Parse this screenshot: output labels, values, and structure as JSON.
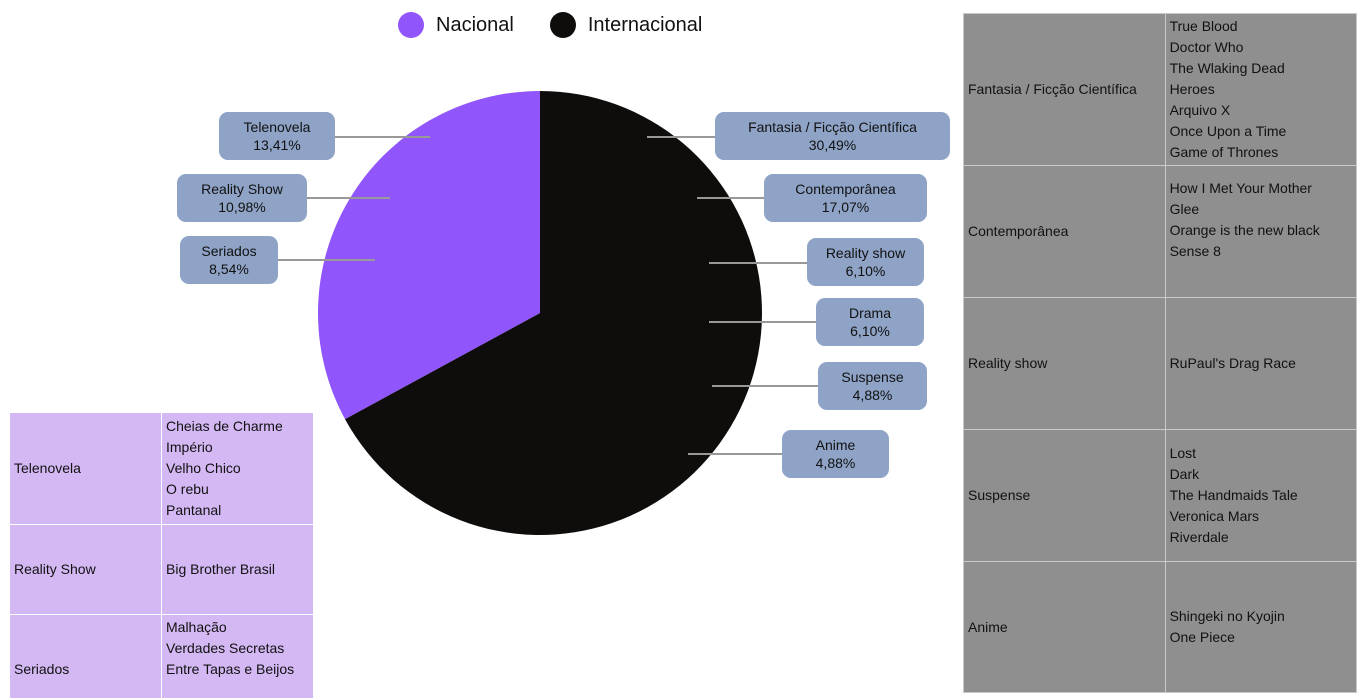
{
  "chart_data": {
    "type": "pie",
    "legend": [
      {
        "name": "Nacional",
        "color": "#9155fc"
      },
      {
        "name": "Internacional",
        "color": "#0f0d0c"
      }
    ],
    "slices": [
      {
        "name": "Nacional",
        "value": 32.93,
        "color": "#9155fc"
      },
      {
        "name": "Internacional",
        "value": 67.07,
        "color": "#0f0d0c"
      }
    ],
    "categories_nacional": [
      {
        "label": "Telenovela",
        "value_text": "13,41%",
        "value": 13.41
      },
      {
        "label": "Reality Show",
        "value_text": "10,98%",
        "value": 10.98
      },
      {
        "label": "Seriados",
        "value_text": "8,54%",
        "value": 8.54
      }
    ],
    "categories_internacional": [
      {
        "label": "Fantasia / Ficção Científica",
        "value_text": "30,49%",
        "value": 30.49
      },
      {
        "label": "Contemporânea",
        "value_text": "17,07%",
        "value": 17.07
      },
      {
        "label": "Reality show",
        "value_text": "6,10%",
        "value": 6.1
      },
      {
        "label": "Drama",
        "value_text": "6,10%",
        "value": 6.1
      },
      {
        "label": "Suspense",
        "value_text": "4,88%",
        "value": 4.88
      },
      {
        "label": "Anime",
        "value_text": "4,88%",
        "value": 4.88
      }
    ],
    "label_color": "#8ea3c6",
    "leader_color": "#999999"
  },
  "nacional_table": {
    "color": "#d4b8f3",
    "rows": [
      {
        "genre": "Telenovela",
        "titles": [
          "Cheias de Charme",
          "Império",
          "Velho Chico",
          "O rebu",
          "Pantanal"
        ]
      },
      {
        "genre": "Reality Show",
        "titles": [
          "Big Brother Brasil"
        ]
      },
      {
        "genre": "Seriados",
        "titles": [
          "Malhação",
          "Verdades Secretas",
          "Entre Tapas e Beijos"
        ]
      }
    ]
  },
  "internacional_table": {
    "color": "#8f8f8f",
    "rows": [
      {
        "genre": "Fantasia / Ficção Científica",
        "titles": [
          "True Blood",
          "Doctor Who",
          "The Wlaking Dead",
          "Heroes",
          "Arquivo X",
          "Once Upon a Time",
          "Game of Thrones"
        ]
      },
      {
        "genre": "Contemporânea",
        "titles": [
          "How I Met Your Mother",
          "Glee",
          "Orange is the new black",
          "Sense 8",
          ""
        ]
      },
      {
        "genre": "Reality show",
        "titles": [
          "RuPaul's Drag Race"
        ]
      },
      {
        "genre": "Suspense",
        "titles": [
          "Lost",
          "Dark",
          "The Handmaids Tale",
          "Veronica Mars",
          "Riverdale"
        ]
      },
      {
        "genre": "Anime",
        "titles": [
          "Shingeki no Kyojin",
          "One Piece"
        ]
      }
    ]
  }
}
